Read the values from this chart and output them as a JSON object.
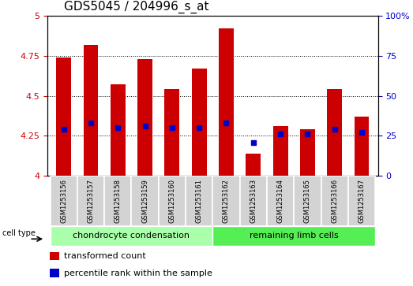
{
  "title": "GDS5045 / 204996_s_at",
  "samples": [
    "GSM1253156",
    "GSM1253157",
    "GSM1253158",
    "GSM1253159",
    "GSM1253160",
    "GSM1253161",
    "GSM1253162",
    "GSM1253163",
    "GSM1253164",
    "GSM1253165",
    "GSM1253166",
    "GSM1253167"
  ],
  "transformed_count": [
    4.74,
    4.82,
    4.57,
    4.73,
    4.54,
    4.67,
    4.92,
    4.14,
    4.31,
    4.29,
    4.54,
    4.37
  ],
  "percentile_rank": [
    4.29,
    4.33,
    4.3,
    4.31,
    4.3,
    4.3,
    4.33,
    4.21,
    4.26,
    4.26,
    4.29,
    4.27
  ],
  "ylim": [
    4.0,
    5.0
  ],
  "y2lim": [
    0,
    100
  ],
  "yticks": [
    4.0,
    4.25,
    4.5,
    4.75,
    5.0
  ],
  "ytick_labels": [
    "4",
    "4.25",
    "4.5",
    "4.75",
    "5"
  ],
  "y2ticks": [
    0,
    25,
    50,
    75,
    100
  ],
  "y2tick_labels": [
    "0",
    "25",
    "50",
    "75",
    "100%"
  ],
  "grid_lines": [
    4.25,
    4.5,
    4.75
  ],
  "bar_color": "#cc0000",
  "dot_color": "#0000cc",
  "bar_width": 0.55,
  "group1_indices": [
    0,
    1,
    2,
    3,
    4,
    5
  ],
  "group2_indices": [
    6,
    7,
    8,
    9,
    10,
    11
  ],
  "group1_label": "chondrocyte condensation",
  "group2_label": "remaining limb cells",
  "group1_color": "#aaffaa",
  "group2_color": "#55ee55",
  "cell_type_label": "cell type",
  "legend1_label": "transformed count",
  "legend2_label": "percentile rank within the sample",
  "title_fontsize": 11,
  "tick_fontsize": 8,
  "sample_fontsize": 6,
  "group_fontsize": 8,
  "legend_fontsize": 8
}
